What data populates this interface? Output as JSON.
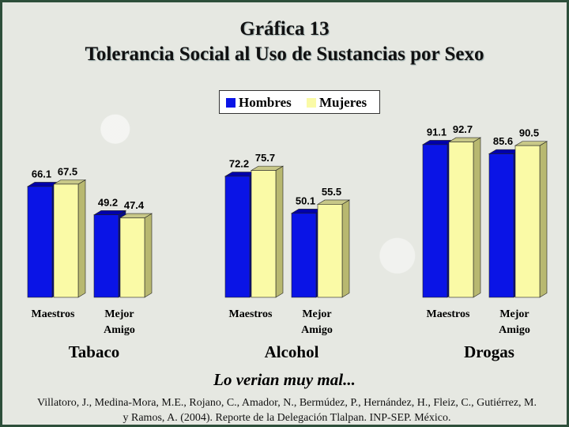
{
  "header": {
    "title_line1": "Gráfica 13",
    "title_line2": "Tolerancia Social al Uso de Sustancias por Sexo"
  },
  "legend": {
    "hombres": "Hombres",
    "mujeres": "Mujeres"
  },
  "colors": {
    "hombres": "#0a14e6",
    "mujeres": "#fafaa6"
  },
  "chart_data": {
    "type": "bar",
    "groups": [
      {
        "name": "Tabaco",
        "categories": [
          "Maestros",
          "Mejor Amigo"
        ]
      },
      {
        "name": "Alcohol",
        "categories": [
          "Maestros",
          "Mejor Amigo"
        ]
      },
      {
        "name": "Drogas",
        "categories": [
          "Maestros",
          "Mejor Amigo"
        ]
      }
    ],
    "series": [
      {
        "name": "Hombres",
        "values": [
          66.1,
          49.2,
          72.2,
          50.1,
          91.1,
          85.6
        ]
      },
      {
        "name": "Mujeres",
        "values": [
          67.5,
          47.4,
          75.7,
          55.5,
          92.7,
          90.5
        ]
      }
    ],
    "ylim": [
      0,
      100
    ],
    "legend_position": "top-center"
  },
  "caption": "Lo verian muy mal...",
  "source": "Villatoro, J., Medina-Mora, M.E., Rojano, C., Amador, N., Bermúdez, P., Hernández, H., Fleiz, C., Gutiérrez, M. y Ramos, A. (2004). Reporte de la Delegación Tlalpan. INP-SEP. México."
}
